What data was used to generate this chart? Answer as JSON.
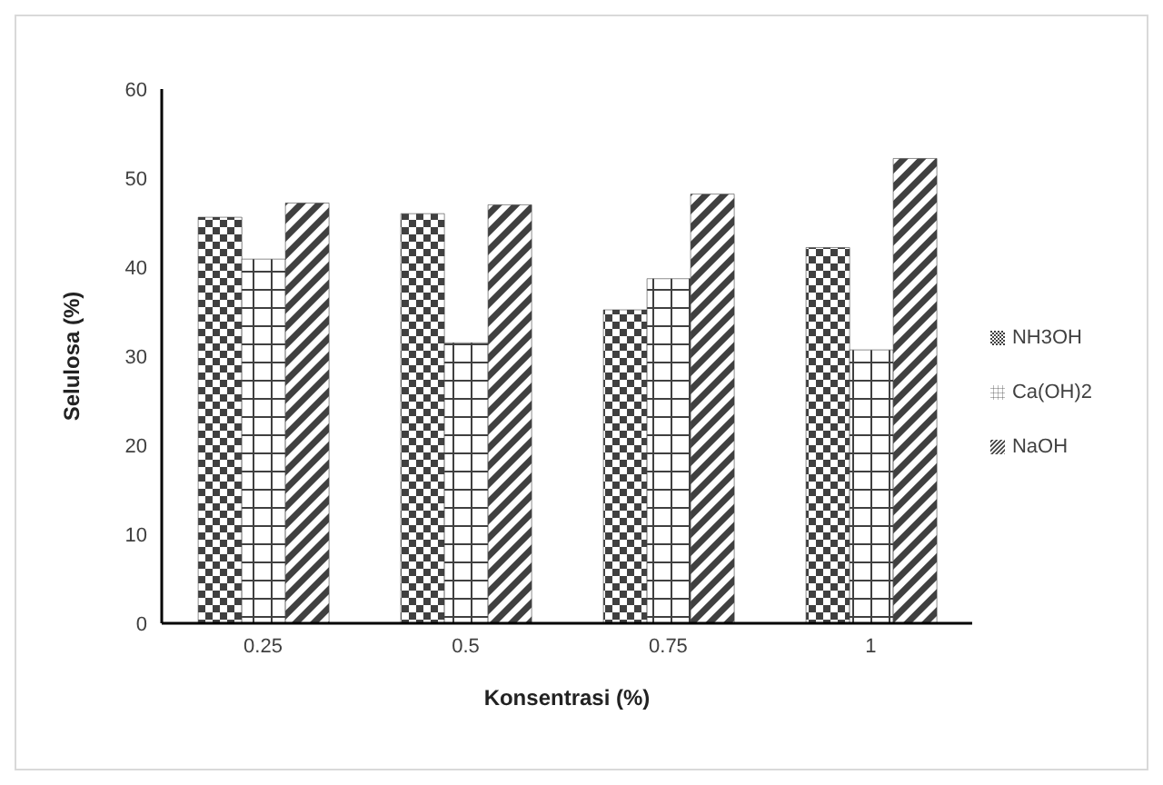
{
  "chart_data": {
    "type": "bar",
    "xlabel": "Konsentrasi (%)",
    "ylabel": "Selulosa (%)",
    "categories": [
      "0.25",
      "0.5",
      "0.75",
      "1"
    ],
    "series": [
      {
        "name": "NH3OH",
        "color": "#404040",
        "values": [
          45.6,
          46.0,
          35.2,
          42.2
        ]
      },
      {
        "name": "Ca(OH)2",
        "color": "#404040",
        "values": [
          40.9,
          31.5,
          38.7,
          30.7
        ]
      },
      {
        "name": "NaOH",
        "color": "#404040",
        "values": [
          47.2,
          47.0,
          48.2,
          52.2
        ]
      }
    ],
    "ylim": [
      0,
      60
    ],
    "yticks": [
      0,
      10,
      20,
      30,
      40,
      50,
      60
    ],
    "grid": false,
    "legend": "right"
  }
}
